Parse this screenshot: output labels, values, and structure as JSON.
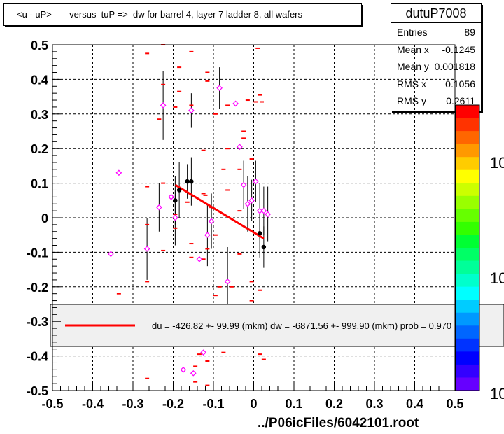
{
  "header": {
    "title": "<u - uP>       versus  tuP =>  dw for barrel 4, layer 7 ladder 8, all wafers"
  },
  "stats": {
    "name": "dutuP7008",
    "rows": [
      {
        "label": "Entries",
        "value": "89"
      },
      {
        "label": "Mean x",
        "value": "-0.1245"
      },
      {
        "label": "Mean y",
        "value": "0.001818"
      },
      {
        "label": "RMS x",
        "value": "0.1056"
      },
      {
        "label": "RMS y",
        "value": "0.2611"
      }
    ]
  },
  "legend": {
    "fit_text": "du = -426.82 +- 99.99 (mkm) dw = -6871.56 +- 999.90 (mkm) prob = 0.970"
  },
  "footer": {
    "filename": "../P06icFiles/6042101.root"
  },
  "colors": {
    "fit_line": "#ff0000",
    "marker_magenta": "#ff00ff",
    "points_black": "#000000",
    "legend_bg": "#f0f0f0"
  },
  "palette": {
    "labels": [
      "10",
      "10",
      "10"
    ]
  },
  "chart_data": {
    "type": "scatter",
    "xlim": [
      -0.5,
      0.5
    ],
    "ylim": [
      -0.5,
      0.5
    ],
    "grid": true,
    "x_ticks": [
      "-0.5",
      "-0.4",
      "-0.3",
      "-0.2",
      "-0.1",
      "0",
      "0.1",
      "0.2",
      "0.3",
      "0.4",
      "0.5"
    ],
    "y_ticks": [
      "0.5",
      "0.4",
      "0.3",
      "0.2",
      "0.1",
      "0",
      "-0.1",
      "-0.2",
      "-0.3",
      "-0.4",
      "-0.5"
    ],
    "fit_line": {
      "x": [
        -0.195,
        0.025
      ],
      "y": [
        0.095,
        -0.06
      ]
    },
    "red_dashes": [
      [
        -0.265,
        0.475
      ],
      [
        -0.225,
        0.5
      ],
      [
        -0.225,
        0.385
      ],
      [
        -0.185,
        0.435
      ],
      [
        -0.185,
        0.365
      ],
      [
        -0.155,
        0.48
      ],
      [
        -0.195,
        0.32
      ],
      [
        -0.235,
        0.285
      ],
      [
        -0.265,
        0.09
      ],
      [
        -0.225,
        0.1
      ],
      [
        -0.265,
        -0.02
      ],
      [
        -0.225,
        -0.095
      ],
      [
        -0.265,
        -0.185
      ],
      [
        -0.195,
        0.01
      ],
      [
        -0.195,
        -0.03
      ],
      [
        -0.165,
        0.045
      ],
      [
        -0.125,
        0.07
      ],
      [
        -0.12,
        0.065
      ],
      [
        -0.105,
        0.03
      ],
      [
        -0.115,
        -0.09
      ],
      [
        -0.155,
        0.325
      ],
      [
        -0.115,
        0.42
      ],
      [
        -0.115,
        0.395
      ],
      [
        -0.095,
        0.3
      ],
      [
        -0.125,
        0.195
      ],
      [
        -0.065,
        0.2
      ],
      [
        -0.035,
        0.02
      ],
      [
        -0.025,
        0.25
      ],
      [
        -0.025,
        0.23
      ],
      [
        -0.015,
        0.34
      ],
      [
        0.005,
        0.335
      ],
      [
        -0.005,
        0.17
      ],
      [
        0.015,
        0.355
      ],
      [
        0.02,
        0.335
      ],
      [
        0.01,
        0.49
      ],
      [
        -0.065,
        0.325
      ],
      [
        -0.035,
        0.14
      ],
      [
        -0.075,
        0.14
      ],
      [
        -0.065,
        0.08
      ],
      [
        -0.125,
        -0.12
      ],
      [
        -0.155,
        -0.075
      ],
      [
        -0.155,
        -0.115
      ],
      [
        -0.095,
        -0.05
      ],
      [
        -0.085,
        -0.2
      ],
      [
        -0.035,
        -0.105
      ],
      [
        -0.005,
        -0.185
      ],
      [
        0.015,
        -0.21
      ],
      [
        -0.005,
        -0.24
      ],
      [
        -0.095,
        -0.225
      ],
      [
        -0.055,
        -0.2
      ],
      [
        -0.335,
        -0.22
      ],
      [
        -0.265,
        -0.465
      ],
      [
        -0.135,
        -0.395
      ],
      [
        -0.115,
        -0.415
      ],
      [
        -0.075,
        -0.39
      ],
      [
        0.015,
        -0.395
      ],
      [
        0.025,
        -0.41
      ],
      [
        -0.145,
        -0.43
      ],
      [
        -0.145,
        -0.475
      ],
      [
        -0.115,
        -0.485
      ]
    ],
    "magenta_points": [
      {
        "x": -0.335,
        "y": 0.13,
        "e": 0
      },
      {
        "x": -0.355,
        "y": -0.105,
        "e": 0
      },
      {
        "x": -0.265,
        "y": -0.09,
        "e": 0.09
      },
      {
        "x": -0.235,
        "y": 0.03,
        "e": 0.07
      },
      {
        "x": -0.225,
        "y": 0.325,
        "e": 0.1
      },
      {
        "x": -0.205,
        "y": 0.06,
        "e": 0
      },
      {
        "x": -0.195,
        "y": 0.0,
        "e": 0.08
      },
      {
        "x": -0.155,
        "y": 0.31,
        "e": 0.05
      },
      {
        "x": -0.135,
        "y": -0.12,
        "e": 0
      },
      {
        "x": -0.115,
        "y": -0.05,
        "e": 0.09
      },
      {
        "x": -0.105,
        "y": -0.01,
        "e": 0.08
      },
      {
        "x": -0.085,
        "y": 0.375,
        "e": 0.06
      },
      {
        "x": -0.065,
        "y": -0.185,
        "e": 0.1
      },
      {
        "x": -0.045,
        "y": 0.33,
        "e": 0
      },
      {
        "x": -0.035,
        "y": 0.205,
        "e": 0
      },
      {
        "x": -0.025,
        "y": 0.095,
        "e": 0.07
      },
      {
        "x": -0.015,
        "y": 0.04,
        "e": 0.08
      },
      {
        "x": -0.005,
        "y": 0.05,
        "e": 0.06
      },
      {
        "x": 0.005,
        "y": 0.105,
        "e": 0.06
      },
      {
        "x": 0.015,
        "y": 0.02,
        "e": 0.08
      },
      {
        "x": 0.025,
        "y": 0.02,
        "e": 0.07
      },
      {
        "x": 0.035,
        "y": 0.01,
        "e": 0.08
      },
      {
        "x": -0.175,
        "y": -0.44,
        "e": 0
      },
      {
        "x": -0.15,
        "y": -0.45,
        "e": 0
      },
      {
        "x": -0.125,
        "y": -0.39,
        "e": 0
      }
    ],
    "black_points": [
      {
        "x": -0.195,
        "y": 0.05,
        "e": 0.07
      },
      {
        "x": -0.185,
        "y": 0.08,
        "e": 0.08
      },
      {
        "x": -0.165,
        "y": 0.105,
        "e": 0.05
      },
      {
        "x": -0.155,
        "y": 0.105,
        "e": 0.07
      },
      {
        "x": 0.015,
        "y": -0.045,
        "e": 0.07
      },
      {
        "x": 0.025,
        "y": -0.085,
        "e": 0.06
      }
    ]
  }
}
